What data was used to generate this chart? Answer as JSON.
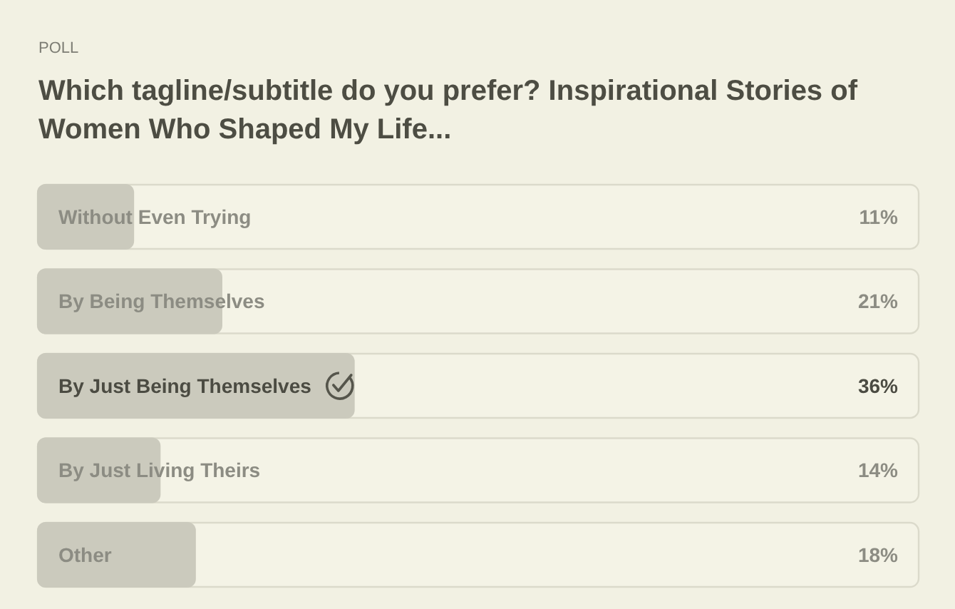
{
  "chart_data": {
    "type": "bar",
    "orientation": "horizontal",
    "subtitle": "POLL",
    "title": "Which tagline/subtitle do you prefer? Inspirational Stories of Women Who Shaped My Life...",
    "categories": [
      "Without Even Trying",
      "By Being Themselves",
      "By Just Being Themselves",
      "By Just Living Theirs",
      "Other"
    ],
    "values": [
      11,
      21,
      36,
      14,
      18
    ],
    "value_labels": [
      "11%",
      "21%",
      "36%",
      "14%",
      "18%"
    ],
    "color": "#cbcabd",
    "xlim": [
      0,
      100
    ],
    "tick_labels": "y"
  }
}
